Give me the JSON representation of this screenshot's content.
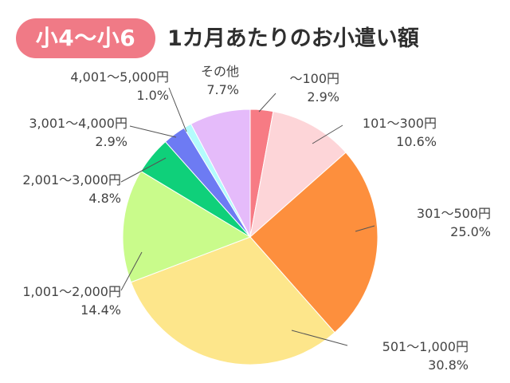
{
  "header": {
    "badge": "小4〜小6",
    "title": "1カ月あたりのお小遣い額"
  },
  "chart_data": {
    "type": "pie",
    "title": "1カ月あたりのお小遣い額",
    "start": "top",
    "direction": "clockwise",
    "slices": [
      {
        "label": "〜100円",
        "value": 2.9,
        "value_label": "2.9%",
        "color": "#f77b84"
      },
      {
        "label": "101〜300円",
        "value": 10.6,
        "value_label": "10.6%",
        "color": "#fdd5d8"
      },
      {
        "label": "301〜500円",
        "value": 25.0,
        "value_label": "25.0%",
        "color": "#fd8f3d"
      },
      {
        "label": "501〜1,000円",
        "value": 30.8,
        "value_label": "30.8%",
        "color": "#fde68b"
      },
      {
        "label": "1,001〜2,000円",
        "value": 14.4,
        "value_label": "14.4%",
        "color": "#c9fb8b"
      },
      {
        "label": "2,001〜3,000円",
        "value": 4.8,
        "value_label": "4.8%",
        "color": "#0fd07a"
      },
      {
        "label": "3,001〜4,000円",
        "value": 2.9,
        "value_label": "2.9%",
        "color": "#6d7bf3"
      },
      {
        "label": "4,001〜5,000円",
        "value": 1.0,
        "value_label": "1.0%",
        "color": "#b3fcfc"
      },
      {
        "label": "その他",
        "value": 7.7,
        "value_label": "7.7%",
        "color": "#e5bbfa"
      }
    ]
  }
}
